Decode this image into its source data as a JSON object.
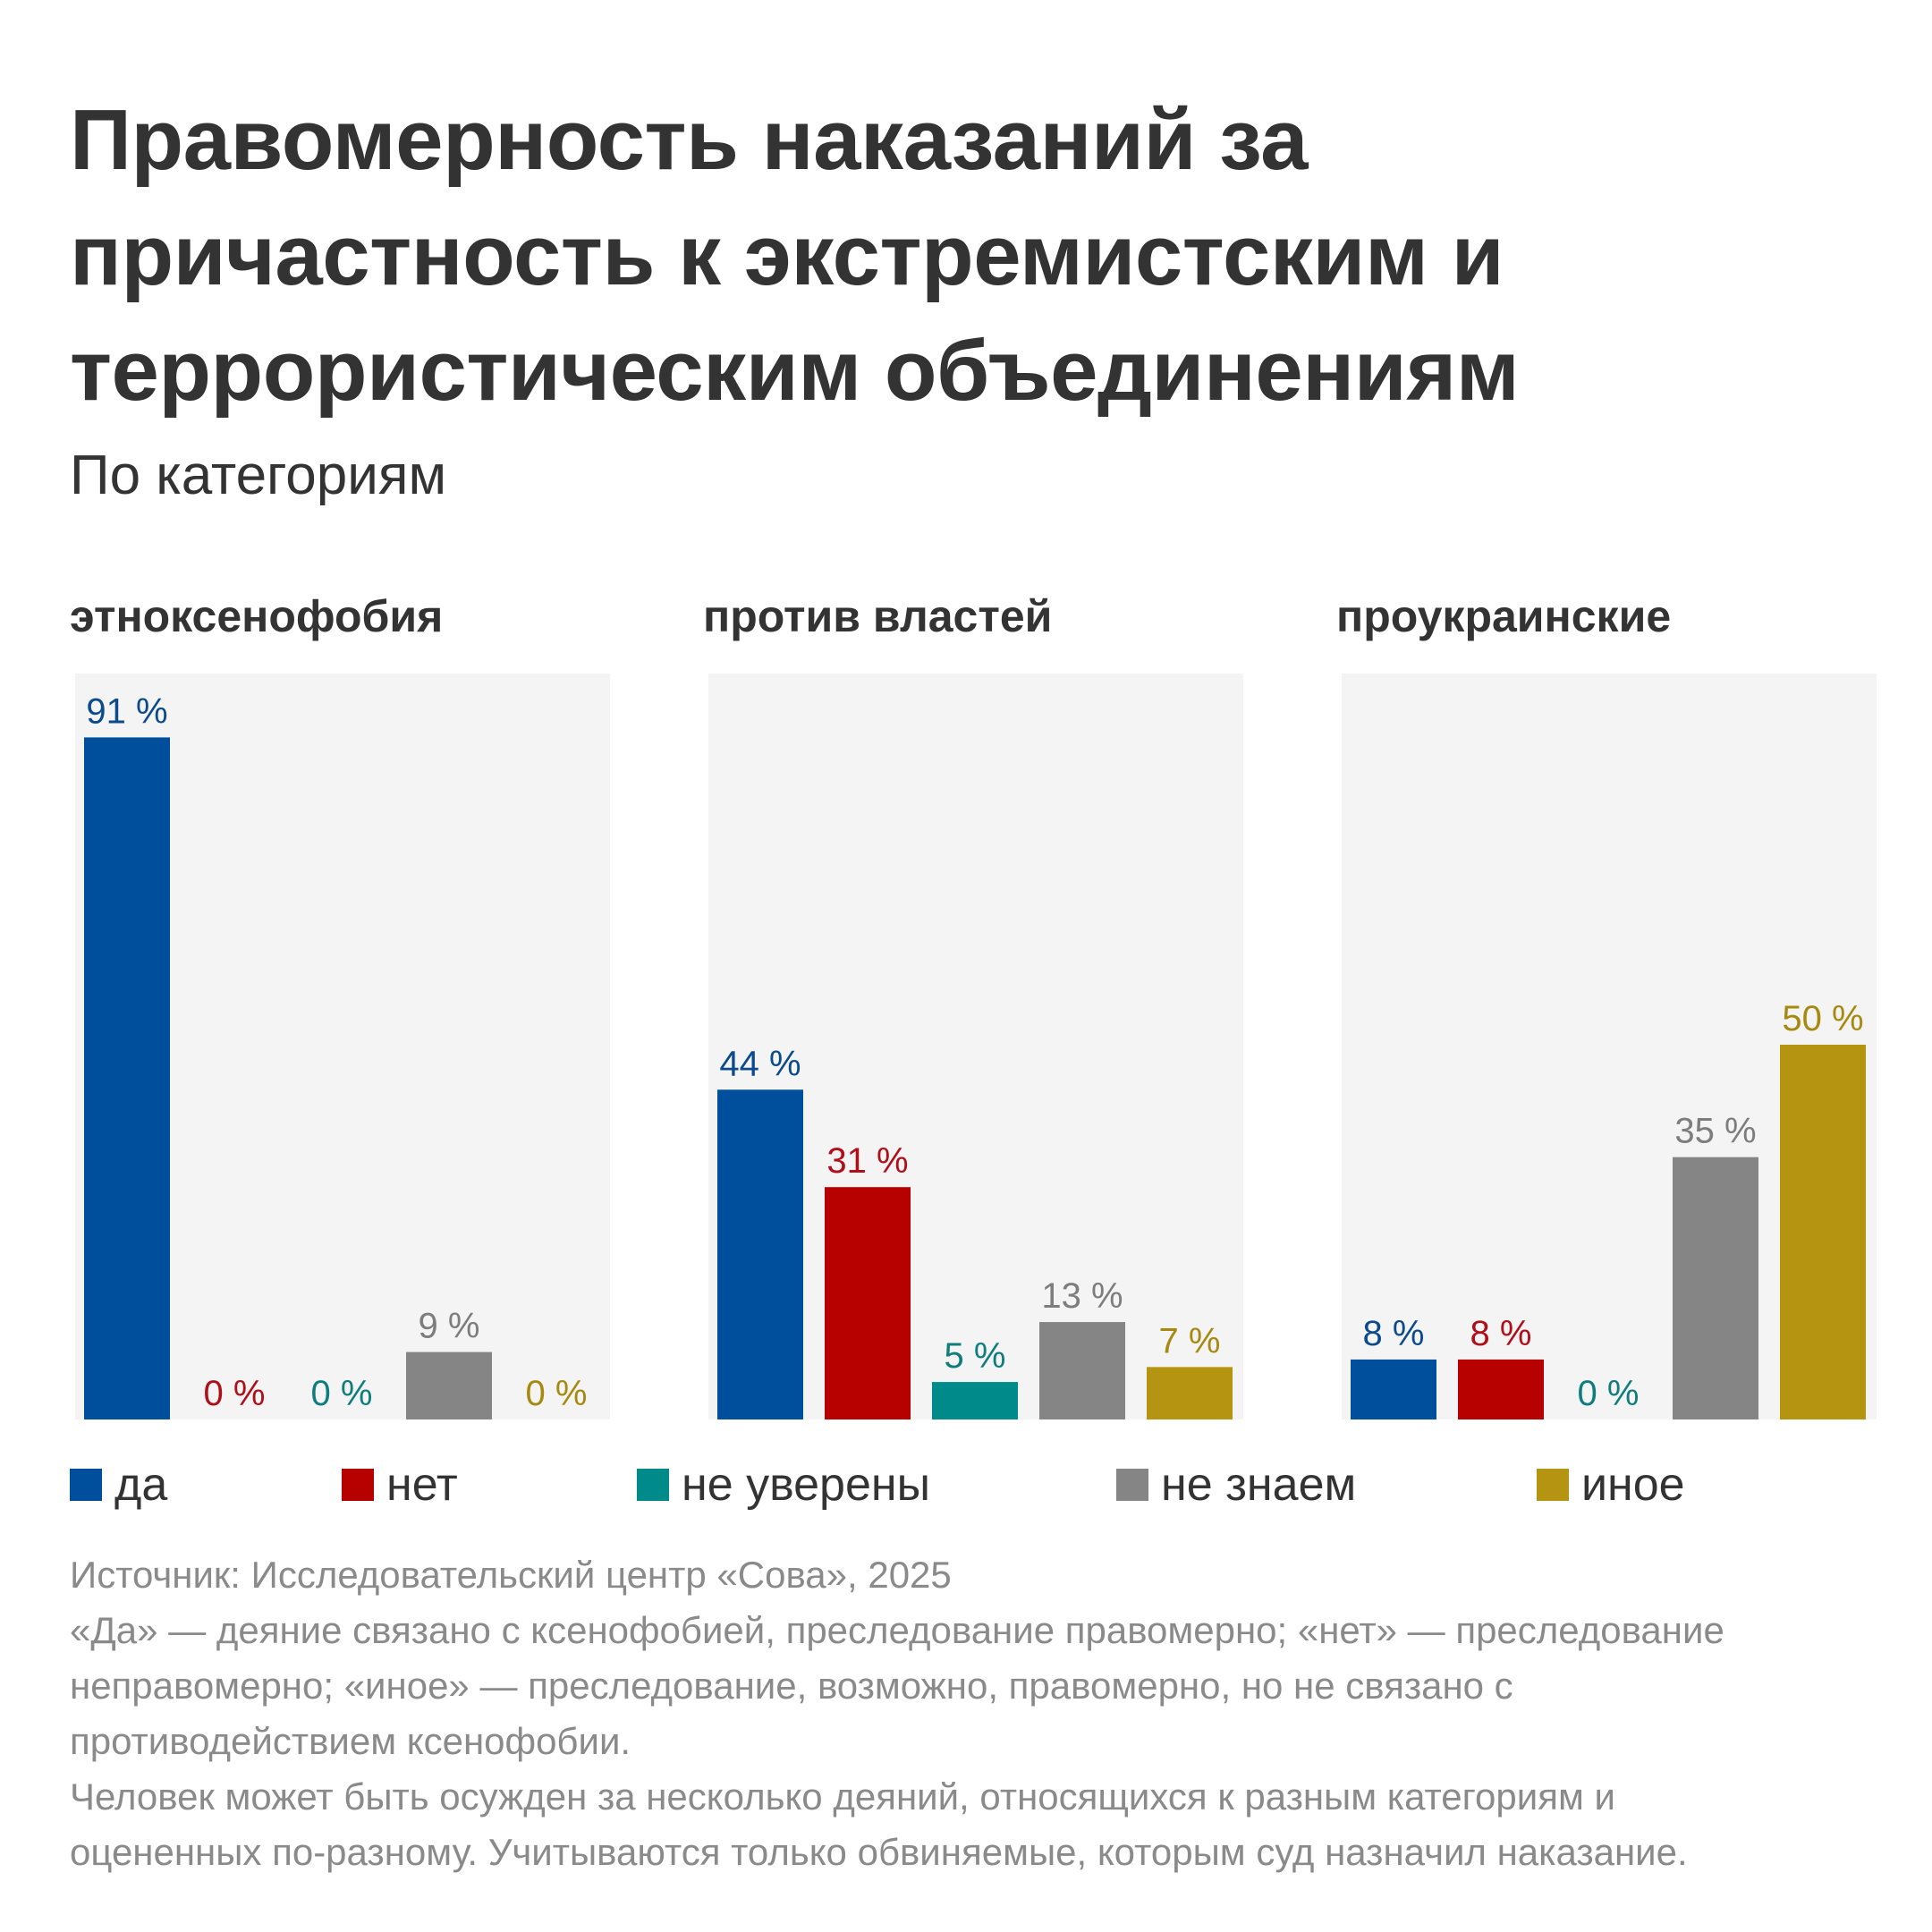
{
  "title_lines": [
    "Правомерность наказаний за",
    "причастность к экстремистским и",
    "террористическим объединениям"
  ],
  "subtitle": "По категориям",
  "chart_data": [
    {
      "type": "bar",
      "title": "этноксенофобия",
      "categories": [
        "да",
        "нет",
        "не уверены",
        "не знаем",
        "иное"
      ],
      "values": [
        91,
        0,
        0,
        9,
        0
      ],
      "data_labels": [
        "91 %",
        "0 %",
        "0 %",
        "9 %",
        "0 %"
      ],
      "ylim": [
        0,
        100
      ],
      "grid": false
    },
    {
      "type": "bar",
      "title": "против властей",
      "categories": [
        "да",
        "нет",
        "не уверены",
        "не знаем",
        "иное"
      ],
      "values": [
        44,
        31,
        5,
        13,
        7
      ],
      "data_labels": [
        "44 %",
        "31 %",
        "5 %",
        "13 %",
        "7 %"
      ],
      "ylim": [
        0,
        100
      ],
      "grid": false
    },
    {
      "type": "bar",
      "title": "проукраинские",
      "categories": [
        "да",
        "нет",
        "не уверены",
        "не знаем",
        "иное"
      ],
      "values": [
        8,
        8,
        0,
        35,
        50
      ],
      "data_labels": [
        "8 %",
        "8 %",
        "0 %",
        "35 %",
        "50 %"
      ],
      "ylim": [
        0,
        100
      ],
      "grid": false
    }
  ],
  "legend": [
    {
      "label": "да",
      "color": "#004f9c"
    },
    {
      "label": "нет",
      "color": "#b70000"
    },
    {
      "label": "не уверены",
      "color": "#008b8b"
    },
    {
      "label": "не знаем",
      "color": "#858585"
    },
    {
      "label": "иное",
      "color": "#b59412"
    }
  ],
  "label_colors": [
    "#0d4a8c",
    "#b00f1a",
    "#0f7d7d",
    "#7d7d7d",
    "#a8890f"
  ],
  "panel_background": "#f4f4f4",
  "notes": [
    "Источник: Исследовательский центр «Сова», 2025",
    "«Да» — деяние связано с ксенофобией, преследование правомерно; «нет» — преследование",
    "неправомерно; «иное» — преследование, возможно, правомерно, но не связано с",
    "противодействием ксенофобии.",
    "Человек может быть осужден за несколько деяний, относящихся к разным категориям и",
    "оцененных по-разному. Учитываются только обвиняемые, которым суд назначил наказание."
  ]
}
